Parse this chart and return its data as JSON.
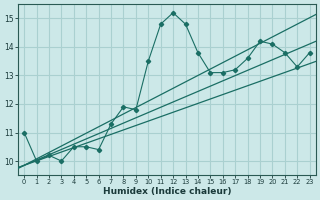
{
  "xlabel": "Humidex (Indice chaleur)",
  "ylabel": "",
  "bg_color": "#cce8e8",
  "grid_color": "#aad0d0",
  "line_color": "#1a6e64",
  "xlim": [
    -0.5,
    23.5
  ],
  "ylim": [
    9.5,
    15.5
  ],
  "xticks": [
    0,
    1,
    2,
    3,
    4,
    5,
    6,
    7,
    8,
    9,
    10,
    11,
    12,
    13,
    14,
    15,
    16,
    17,
    18,
    19,
    20,
    21,
    22,
    23
  ],
  "yticks": [
    10,
    11,
    12,
    13,
    14,
    15
  ],
  "data_x": [
    0,
    1,
    2,
    3,
    4,
    5,
    6,
    7,
    8,
    9,
    10,
    11,
    12,
    13,
    14,
    15,
    16,
    17,
    18,
    19,
    20,
    21,
    22,
    23
  ],
  "data_y": [
    11.0,
    10.0,
    10.2,
    10.0,
    10.5,
    10.5,
    10.4,
    11.3,
    11.9,
    11.8,
    13.5,
    14.8,
    15.2,
    14.8,
    13.8,
    13.1,
    13.1,
    13.2,
    13.6,
    14.2,
    14.1,
    13.8,
    13.3,
    13.8
  ],
  "reg_origin_x": 0.0,
  "reg_origin_y": 9.85,
  "reg_slope_mid": 0.185,
  "reg_slope_upper": 0.225,
  "reg_slope_lower": 0.155
}
